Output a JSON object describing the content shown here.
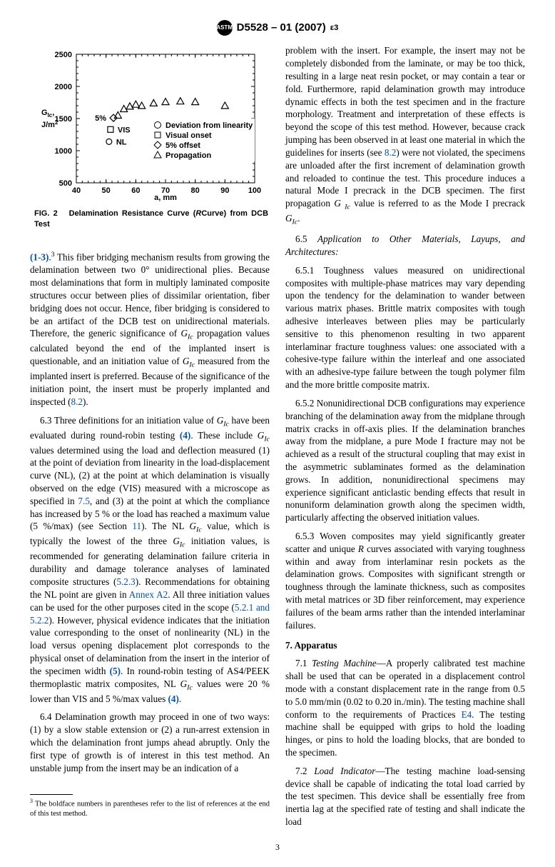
{
  "header": {
    "logo_text": "ASTM",
    "doc_id": "D5528 – 01 (2007)",
    "doc_sup": "ε3"
  },
  "figure": {
    "ylabel1": "G",
    "ylabel1_sub": "Ic",
    "ylabel1_suffix": ",",
    "ylabel2": "J/m",
    "ylabel2_sup": "2",
    "xlabel": "a, mm",
    "x_ticks": [
      40,
      50,
      60,
      70,
      80,
      90,
      100
    ],
    "y_ticks": [
      500,
      1000,
      1500,
      2000,
      2500
    ],
    "x_range": [
      40,
      100
    ],
    "y_range": [
      500,
      2500
    ],
    "axis_color": "#000000",
    "font_size_ticks": 11,
    "font_size_label": 12,
    "series": {
      "propagation": {
        "marker": "triangle",
        "label": "Propagation",
        "points": [
          [
            54,
            1550
          ],
          [
            56,
            1650
          ],
          [
            58,
            1690
          ],
          [
            60,
            1720
          ],
          [
            62,
            1700
          ],
          [
            66,
            1740
          ],
          [
            70,
            1760
          ],
          [
            75,
            1770
          ],
          [
            80,
            1760
          ],
          [
            90,
            1700
          ]
        ]
      },
      "offset5": {
        "marker": "diamond",
        "label": "5% offset",
        "points": [
          [
            52.5,
            1510
          ]
        ],
        "text_anchor": "5%"
      },
      "visual": {
        "marker": "square",
        "label": "Visual onset",
        "points": [
          [
            51.5,
            1330
          ]
        ],
        "text_anchor": "VIS"
      },
      "nl": {
        "marker": "circle",
        "label": "NL",
        "points": [
          [
            51,
            1140
          ]
        ],
        "text_anchor": "NL"
      },
      "deviation": {
        "marker": "circle",
        "label": "Deviation from linearity"
      }
    },
    "legend_labels": [
      "Deviation from linearity",
      "Visual onset",
      "5% offset",
      "Propagation"
    ],
    "caption_prefix": "FIG. 2",
    "caption_text": "Delamination Resistance Curve (",
    "caption_ital": "R",
    "caption_text2": "Curve) from DCB Test"
  },
  "left_col": {
    "p1_ref": "(1-3)",
    "p1_sup": "3",
    "p1_body": " This fiber bridging mechanism results from growing the delamination between two 0° unidirectional plies. Because most delaminations that form in multiply laminated composite structures occur between plies of dissimilar orientation, fiber bridging does not occur. Hence, fiber bridging is considered to be an artifact of the DCB test on unidirectional materials. Therefore, the generic significance of ",
    "g1": "G",
    "g1_sub": "Ic",
    "p1_body2": " propagation values calculated beyond the end of the implanted insert is questionable, and an initiation value of ",
    "g2": "G",
    "g2_sub": "Ic",
    "p1_body3": " measured from the implanted insert is preferred. Because of the significance of the initiation point, the insert must be properly implanted and inspected (",
    "p1_ref82": "8.2",
    "p1_body4": ").",
    "p2_lead": "6.3  Three definitions for an initiation value of ",
    "p2_body": " have been evaluated during round-robin testing ",
    "p2_ref4": "(4)",
    "p2_body2": ". These include ",
    "p2_body3": " values determined using the load and deflection measured (1) at the point of deviation from linearity in the load-displacement curve (NL), (2) at the point at which delamination is visually observed on the edge (VIS) measured with a microscope as specified in ",
    "p2_ref75": "7.5",
    "p2_body3b": ", and (3) at the point at which the compliance has increased by 5 % or the load has reached a maximum value (5 %/max) (see Section ",
    "p2_ref11": "11",
    "p2_body4": "). The NL ",
    "p2_body5": " value, which is typically the lowest of the three ",
    "p2_body6": " initiation values, is recommended for generating delamination failure criteria in durability and damage tolerance analyses of laminated composite structures (",
    "p2_ref523": "5.2.3",
    "p2_body7": "). Recommendations for obtaining the NL point are given in ",
    "p2_refA2": "Annex A2",
    "p2_body8": ". All three initiation values can be used for the other purposes cited in the scope (",
    "p2_ref521": "5.2.1 and 5.2.2",
    "p2_body9": "). However, physical evidence indicates that the initiation value corresponding to the onset of nonlinearity (NL) in the load versus opening displacement plot corresponds to the physical onset of delamination from the insert in the interior of the specimen width ",
    "p2_ref5": "(5)",
    "p2_body10": ". In round-robin testing of AS4/PEEK thermoplastic matrix composites, NL ",
    "p2_body11": " values were 20 % lower than VIS and 5 %/max values ",
    "p2_ref4b": "(4)",
    "p2_body12": ".",
    "p3_lead": "6.4  Delamination growth may proceed in one of two ways: (1) by a slow stable extension or (2) a run-arrest extension in which the delamination front jumps ahead abruptly. Only the first type of growth is of interest in this test method. An unstable jump from the insert may be an indication of a",
    "footnote_sup": "3",
    "footnote_text": " The boldface numbers in parentheses refer to the list of references at the end of this test method."
  },
  "right_col": {
    "r1a": "problem with the insert. For example, the insert may not be completely disbonded from the laminate, or may be too thick, resulting in a large neat resin pocket, or may contain a tear or fold. Furthermore, rapid delamination growth may introduce dynamic effects in both the test specimen and in the fracture morphology. Treatment and interpretation of these effects is beyond the scope of this test method. However, because crack jumping has been observed in at least one material in which the guidelines for inserts (see ",
    "r1_ref82": "8.2",
    "r1b": ") were not violated, the specimens are unloaded after the first increment of delamination growth and reloaded to continue the test. This procedure induces a natural Mode I precrack in the DCB specimen. The first propagation ",
    "r1_g": "G ",
    "r1_g_sub": "Ic",
    "r1c": " value is referred to as the Mode I precrack ",
    "r1_g2": "G",
    "r1_g2_sub": "Ic",
    "r1d": ".",
    "r2_lead": "6.5 ",
    "r2_ital": "Application to Other Materials, Layups, and Architectures:",
    "r3_lead": "6.5.1  Toughness values measured on unidirectional composites with multiple-phase matrices may vary depending upon the tendency for the delamination to wander between various matrix phases. Brittle matrix composites with tough adhesive interleaves between plies may be particularly sensitive to this phenomenon resulting in two apparent interlaminar fracture toughness values: one associated with a cohesive-type failure within the interleaf and one associated with an adhesive-type failure between the tough polymer film and the more brittle composite matrix.",
    "r4_lead": "6.5.2  Nonunidirectional DCB configurations may experience branching of the delamination away from the midplane through matrix cracks in off-axis plies. If the delamination branches away from the midplane, a pure Mode I fracture may not be achieved as a result of the structural coupling that may exist in the asymmetric sublaminates formed as the delamination grows. In addition, nonunidirectional specimens may experience significant anticlastic bending effects that result in nonuniform delamination growth along the specimen width, particularly affecting the observed initiation values.",
    "r5_lead": "6.5.3  Woven composites may yield significantly greater scatter and unique ",
    "r5_R": "R",
    "r5_body": " curves associated with varying toughness within and away from interlaminar resin pockets as the delamination grows. Composites with significant strength or toughness through the laminate thickness, such as composites with metal matrices or 3D fiber reinforcement, may experience failures of the beam arms rather than the intended interlaminar failures.",
    "sec7": "7. Apparatus",
    "r7_1_lead": "7.1 ",
    "r7_1_ital": "Testing Machine",
    "r7_1_body": "—A properly calibrated test machine shall be used that can be operated in a displacement control mode with a constant displacement rate in the range from 0.5 to 5.0 mm/min (0.02 to 0.20 in./min). The testing machine shall conform to the requirements of Practices ",
    "r7_1_refE4": "E4",
    "r7_1_body2": ". The testing machine shall be equipped with grips to hold the loading hinges, or pins to hold the loading blocks, that are bonded to the specimen.",
    "r7_2_lead": "7.2 ",
    "r7_2_ital": "Load Indicator",
    "r7_2_body": "—The testing machine load-sensing device shall be capable of indicating the total load carried by the test specimen. This device shall be essentially free from inertia lag at the specified rate of testing and shall indicate the load"
  },
  "page_number": "3"
}
